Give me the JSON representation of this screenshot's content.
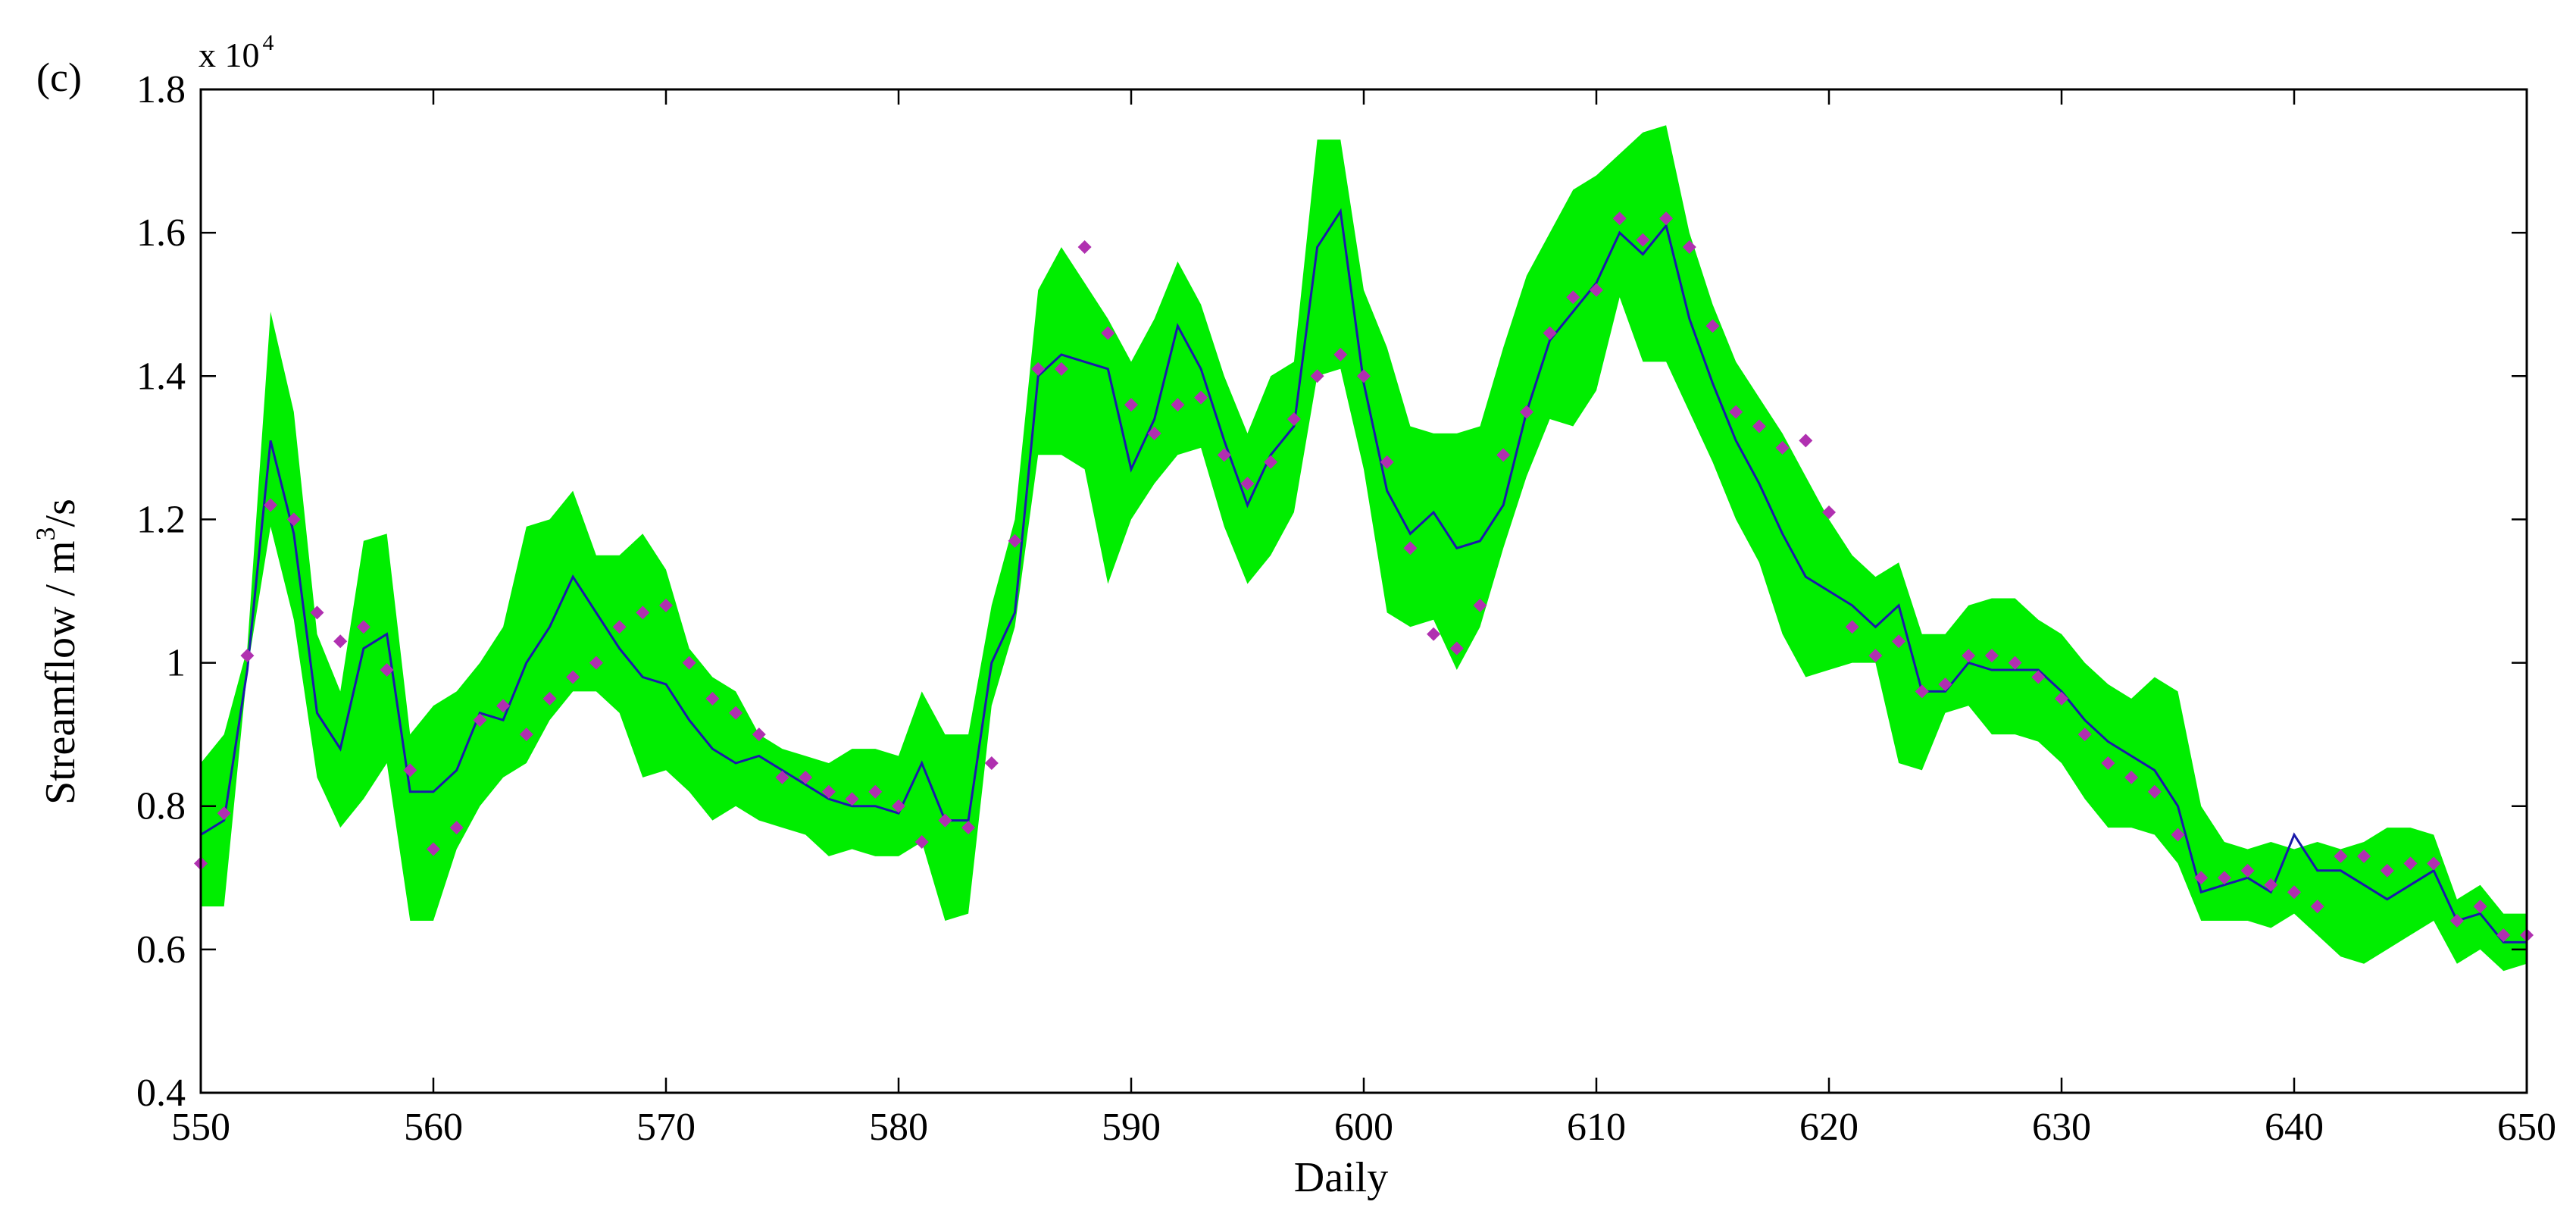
{
  "chart_data": {
    "type": "line",
    "panel_label": "(c)",
    "scale_label_base": "x 10",
    "scale_label_exp": "4",
    "xlabel": "Daily",
    "ylabel_main": "Streamflow / m",
    "ylabel_sup": "3",
    "ylabel_tail": "/s",
    "xlim": [
      550,
      650
    ],
    "ylim": [
      0.4,
      1.8
    ],
    "x_ticks": [
      550,
      560,
      570,
      580,
      590,
      600,
      610,
      620,
      630,
      640,
      650
    ],
    "y_ticks": [
      0.4,
      0.6,
      0.8,
      1.0,
      1.2,
      1.4,
      1.6,
      1.8
    ],
    "y_tick_labels": [
      "0.4",
      "0.6",
      "0.8",
      "1",
      "1.2",
      "1.4",
      "1.6",
      "1.8"
    ],
    "colors": {
      "band": "#00ee00",
      "line": "#1a1aaa",
      "points": "#b030b0",
      "axis": "#000000"
    },
    "x": [
      550,
      551,
      552,
      553,
      554,
      555,
      556,
      557,
      558,
      559,
      560,
      561,
      562,
      563,
      564,
      565,
      566,
      567,
      568,
      569,
      570,
      571,
      572,
      573,
      574,
      575,
      576,
      577,
      578,
      579,
      580,
      581,
      582,
      583,
      584,
      585,
      586,
      587,
      588,
      589,
      590,
      591,
      592,
      593,
      594,
      595,
      596,
      597,
      598,
      599,
      600,
      601,
      602,
      603,
      604,
      605,
      606,
      607,
      608,
      609,
      610,
      611,
      612,
      613,
      614,
      615,
      616,
      617,
      618,
      619,
      620,
      621,
      622,
      623,
      624,
      625,
      626,
      627,
      628,
      629,
      630,
      631,
      632,
      633,
      634,
      635,
      636,
      637,
      638,
      639,
      640,
      641,
      642,
      643,
      644,
      645,
      646,
      647,
      648,
      649,
      650
    ],
    "series": [
      {
        "kind": "band",
        "upper": [
          0.86,
          0.9,
          1.02,
          1.49,
          1.35,
          1.04,
          0.96,
          1.17,
          1.18,
          0.9,
          0.94,
          0.96,
          1.0,
          1.05,
          1.19,
          1.2,
          1.24,
          1.15,
          1.15,
          1.18,
          1.13,
          1.02,
          0.98,
          0.96,
          0.9,
          0.88,
          0.87,
          0.86,
          0.88,
          0.88,
          0.87,
          0.96,
          0.9,
          0.9,
          1.08,
          1.2,
          1.52,
          1.58,
          1.53,
          1.48,
          1.42,
          1.48,
          1.56,
          1.5,
          1.4,
          1.32,
          1.4,
          1.42,
          1.73,
          1.73,
          1.52,
          1.44,
          1.33,
          1.32,
          1.32,
          1.33,
          1.44,
          1.54,
          1.6,
          1.66,
          1.68,
          1.71,
          1.74,
          1.75,
          1.6,
          1.5,
          1.42,
          1.37,
          1.32,
          1.26,
          1.2,
          1.15,
          1.12,
          1.14,
          1.04,
          1.04,
          1.08,
          1.09,
          1.09,
          1.06,
          1.04,
          1.0,
          0.97,
          0.95,
          0.98,
          0.96,
          0.8,
          0.75,
          0.74,
          0.75,
          0.74,
          0.75,
          0.74,
          0.75,
          0.77,
          0.77,
          0.76,
          0.67,
          0.69,
          0.65,
          0.65
        ],
        "lower": [
          0.66,
          0.66,
          0.99,
          1.19,
          1.06,
          0.84,
          0.77,
          0.81,
          0.86,
          0.64,
          0.64,
          0.74,
          0.8,
          0.84,
          0.86,
          0.92,
          0.96,
          0.96,
          0.93,
          0.84,
          0.85,
          0.82,
          0.78,
          0.8,
          0.78,
          0.77,
          0.76,
          0.73,
          0.74,
          0.73,
          0.73,
          0.75,
          0.64,
          0.65,
          0.94,
          1.05,
          1.29,
          1.29,
          1.27,
          1.11,
          1.2,
          1.25,
          1.29,
          1.3,
          1.19,
          1.11,
          1.15,
          1.21,
          1.4,
          1.41,
          1.27,
          1.07,
          1.05,
          1.06,
          0.99,
          1.05,
          1.16,
          1.26,
          1.34,
          1.33,
          1.38,
          1.51,
          1.42,
          1.42,
          1.35,
          1.28,
          1.2,
          1.14,
          1.04,
          0.98,
          0.99,
          1.0,
          1.0,
          0.86,
          0.85,
          0.93,
          0.94,
          0.9,
          0.9,
          0.89,
          0.86,
          0.81,
          0.77,
          0.77,
          0.76,
          0.72,
          0.64,
          0.64,
          0.64,
          0.63,
          0.65,
          0.62,
          0.59,
          0.58,
          0.6,
          0.62,
          0.64,
          0.58,
          0.6,
          0.57,
          0.58
        ]
      },
      {
        "kind": "line",
        "values": [
          0.76,
          0.78,
          0.99,
          1.31,
          1.18,
          0.93,
          0.88,
          1.02,
          1.04,
          0.82,
          0.82,
          0.85,
          0.93,
          0.92,
          1.0,
          1.05,
          1.12,
          1.07,
          1.02,
          0.98,
          0.97,
          0.92,
          0.88,
          0.86,
          0.87,
          0.85,
          0.83,
          0.81,
          0.8,
          0.8,
          0.79,
          0.86,
          0.78,
          0.78,
          1.0,
          1.07,
          1.4,
          1.43,
          1.42,
          1.41,
          1.27,
          1.34,
          1.47,
          1.41,
          1.31,
          1.22,
          1.29,
          1.33,
          1.58,
          1.63,
          1.39,
          1.24,
          1.18,
          1.21,
          1.16,
          1.17,
          1.22,
          1.35,
          1.45,
          1.49,
          1.53,
          1.6,
          1.57,
          1.61,
          1.48,
          1.39,
          1.31,
          1.25,
          1.18,
          1.12,
          1.1,
          1.08,
          1.05,
          1.08,
          0.96,
          0.96,
          1.0,
          0.99,
          0.99,
          0.99,
          0.96,
          0.92,
          0.89,
          0.87,
          0.85,
          0.8,
          0.68,
          0.69,
          0.7,
          0.68,
          0.76,
          0.71,
          0.71,
          0.69,
          0.67,
          0.69,
          0.71,
          0.64,
          0.65,
          0.61,
          0.61
        ]
      },
      {
        "kind": "scatter",
        "values": [
          0.72,
          0.79,
          1.01,
          1.22,
          1.2,
          1.07,
          1.03,
          1.05,
          0.99,
          0.85,
          0.74,
          0.77,
          0.92,
          0.94,
          0.9,
          0.95,
          0.98,
          1.0,
          1.05,
          1.07,
          1.08,
          1.0,
          0.95,
          0.93,
          0.9,
          0.84,
          0.84,
          0.82,
          0.81,
          0.82,
          0.8,
          0.75,
          0.78,
          0.77,
          0.86,
          1.17,
          1.41,
          1.41,
          1.58,
          1.46,
          1.36,
          1.32,
          1.36,
          1.37,
          1.29,
          1.25,
          1.28,
          1.34,
          1.4,
          1.43,
          1.4,
          1.28,
          1.16,
          1.04,
          1.02,
          1.08,
          1.29,
          1.35,
          1.46,
          1.51,
          1.52,
          1.62,
          1.59,
          1.62,
          1.58,
          1.47,
          1.35,
          1.33,
          1.3,
          1.31,
          1.21,
          1.05,
          1.01,
          1.03,
          0.96,
          0.97,
          1.01,
          1.01,
          1.0,
          0.98,
          0.95,
          0.9,
          0.86,
          0.84,
          0.82,
          0.76,
          0.7,
          0.7,
          0.71,
          0.69,
          0.68,
          0.66,
          0.73,
          0.73,
          0.71,
          0.72,
          0.72,
          0.64,
          0.66,
          0.62,
          0.62
        ]
      }
    ]
  }
}
